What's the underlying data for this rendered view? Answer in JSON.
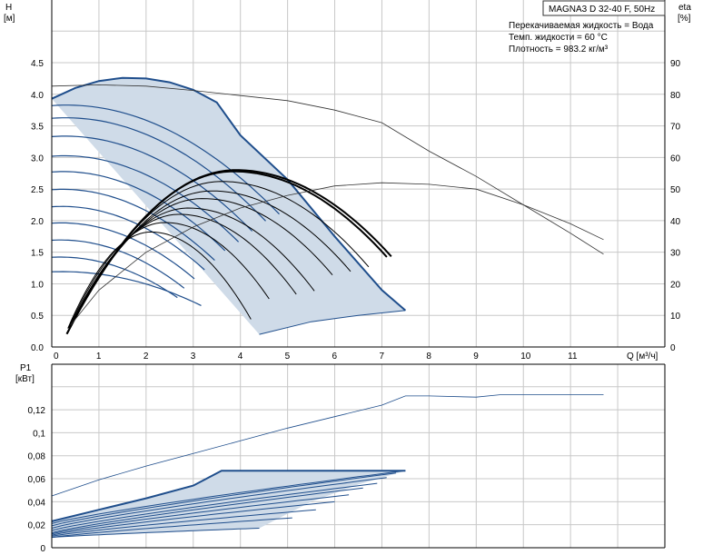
{
  "title": "MAGNA3 D 32-40 F, 50Hz",
  "notes": [
    "Перекачиваемая жидкость = Вода",
    "Темп. жидкости = 60 °C",
    "Плотность = 983.2 кг/м³"
  ],
  "colors": {
    "fill": "#cfdbe8",
    "hq_line": "#1f4e8c",
    "eta_line": "#000000",
    "grid": "#c8c8c8",
    "thin": "#333333"
  },
  "chart_data": [
    {
      "type": "line",
      "name": "hq",
      "xlabel": "Q [м³/ч]",
      "ylabel_left": "H",
      "ylabel_left_unit": "[м]",
      "ylabel_right": "eta",
      "ylabel_right_unit": "[%]",
      "xlim": [
        0,
        13
      ],
      "ylim": [
        0,
        5
      ],
      "ylim_right": [
        0,
        100
      ],
      "grid": true,
      "x_ticks": [
        "0",
        "1",
        "2",
        "3",
        "4",
        "5",
        "6",
        "7",
        "8",
        "9",
        "10",
        "11"
      ],
      "y_ticks": [
        "0.0",
        "0.5",
        "1.0",
        "1.5",
        "2.0",
        "2.5",
        "3.0",
        "3.5",
        "4.0",
        "4.5"
      ],
      "y_right_ticks": [
        "0",
        "10",
        "20",
        "30",
        "40",
        "50",
        "60",
        "70",
        "80",
        "90"
      ],
      "envelope": {
        "max_curve": [
          [
            0,
            3.93
          ],
          [
            0.5,
            4.1
          ],
          [
            1,
            4.21
          ],
          [
            1.5,
            4.26
          ],
          [
            2,
            4.25
          ],
          [
            2.5,
            4.19
          ],
          [
            3,
            4.07
          ],
          [
            3.5,
            3.87
          ],
          [
            4,
            3.35
          ],
          [
            5,
            2.65
          ],
          [
            6,
            1.75
          ],
          [
            7,
            0.9
          ],
          [
            7.5,
            0.58
          ]
        ],
        "min_curve": [
          [
            7.5,
            0.58
          ],
          [
            6.5,
            0.5
          ],
          [
            5.5,
            0.4
          ],
          [
            4.4,
            0.2
          ]
        ]
      },
      "hq_curves": [
        {
          "h0": 3.82,
          "qmax": 6.7
        },
        {
          "h0": 3.62,
          "qmax": 6.3
        },
        {
          "h0": 3.33,
          "qmax": 5.9
        },
        {
          "h0": 3.02,
          "qmax": 5.5
        },
        {
          "h0": 2.77,
          "qmax": 5.1
        },
        {
          "h0": 2.49,
          "qmax": 4.8
        },
        {
          "h0": 2.22,
          "qmax": 4.5
        },
        {
          "h0": 1.96,
          "qmax": 4.2
        },
        {
          "h0": 1.69,
          "qmax": 3.9
        },
        {
          "h0": 1.42,
          "qmax": 3.7
        },
        {
          "h0": 1.19,
          "qmax": 4.4
        }
      ],
      "eta_curves": [
        {
          "peak_q": 3.9,
          "peak_h": 2.8,
          "qend": 7.5
        },
        {
          "peak_q": 3.85,
          "peak_h": 2.78,
          "qend": 7.4
        },
        {
          "peak_q": 3.6,
          "peak_h": 2.62,
          "qend": 7.0
        },
        {
          "peak_q": 3.4,
          "peak_h": 2.47,
          "qend": 6.6
        },
        {
          "peak_q": 3.2,
          "peak_h": 2.35,
          "qend": 6.2
        },
        {
          "peak_q": 2.9,
          "peak_h": 2.2,
          "qend": 5.8
        },
        {
          "peak_q": 2.7,
          "peak_h": 2.1,
          "qend": 5.4
        },
        {
          "peak_q": 2.4,
          "peak_h": 1.97,
          "qend": 4.8
        },
        {
          "peak_q": 2.1,
          "peak_h": 1.82,
          "qend": 4.4
        }
      ],
      "eta_overall": [
        [
          0.4,
          7
        ],
        [
          1,
          18
        ],
        [
          2,
          30
        ],
        [
          3,
          38
        ],
        [
          4,
          44
        ],
        [
          5,
          48
        ],
        [
          6,
          51
        ],
        [
          7,
          52
        ],
        [
          8,
          51.5
        ],
        [
          9,
          50
        ],
        [
          10,
          45
        ],
        [
          11,
          39
        ],
        [
          11.7,
          34
        ]
      ],
      "hmax_overall": [
        [
          0,
          4.13
        ],
        [
          1,
          4.15
        ],
        [
          2,
          4.13
        ],
        [
          3,
          4.06
        ],
        [
          4,
          3.98
        ],
        [
          5,
          3.9
        ],
        [
          6,
          3.75
        ],
        [
          7,
          3.55
        ],
        [
          8,
          3.1
        ],
        [
          9,
          2.7
        ],
        [
          10,
          2.25
        ],
        [
          11,
          1.8
        ],
        [
          11.7,
          1.47
        ]
      ]
    },
    {
      "type": "line",
      "name": "power",
      "xlabel": "",
      "ylabel": "P1",
      "ylabel_unit": "[кВт]",
      "xlim": [
        0,
        13
      ],
      "ylim": [
        0,
        0.14
      ],
      "grid": true,
      "y_ticks": [
        "0",
        "0,02",
        "0,04",
        "0,06",
        "0,08",
        "0,1",
        "0,12"
      ],
      "envelope": {
        "upper": [
          [
            0,
            0.023
          ],
          [
            1,
            0.033
          ],
          [
            2,
            0.043
          ],
          [
            3,
            0.054
          ],
          [
            3.6,
            0.067
          ],
          [
            7.5,
            0.067
          ]
        ],
        "lower": [
          [
            7.5,
            0.067
          ],
          [
            6.5,
            0.055
          ],
          [
            5.5,
            0.04
          ],
          [
            4.4,
            0.017
          ],
          [
            0,
            0.009
          ]
        ]
      },
      "p_curves": [
        {
          "p0": 0.021,
          "qend": 7.5,
          "pend": 0.067
        },
        {
          "p0": 0.019,
          "qend": 7.3,
          "pend": 0.065
        },
        {
          "p0": 0.017,
          "qend": 7.1,
          "pend": 0.061
        },
        {
          "p0": 0.015,
          "qend": 6.9,
          "pend": 0.056
        },
        {
          "p0": 0.013,
          "qend": 6.6,
          "pend": 0.052
        },
        {
          "p0": 0.012,
          "qend": 6.3,
          "pend": 0.046
        },
        {
          "p0": 0.011,
          "qend": 6.0,
          "pend": 0.04
        },
        {
          "p0": 0.01,
          "qend": 5.6,
          "pend": 0.033
        },
        {
          "p0": 0.009,
          "qend": 5.1,
          "pend": 0.026
        },
        {
          "p0": 0.009,
          "qend": 4.4,
          "pend": 0.017
        }
      ],
      "p_max_overall": [
        [
          0,
          0.045
        ],
        [
          1,
          0.059
        ],
        [
          2,
          0.071
        ],
        [
          3,
          0.082
        ],
        [
          4,
          0.093
        ],
        [
          5,
          0.104
        ],
        [
          6,
          0.114
        ],
        [
          7,
          0.124
        ],
        [
          7.5,
          0.132
        ],
        [
          8,
          0.132
        ],
        [
          9,
          0.131
        ],
        [
          9.5,
          0.133
        ],
        [
          10,
          0.133
        ],
        [
          11,
          0.133
        ],
        [
          11.7,
          0.133
        ]
      ]
    }
  ]
}
